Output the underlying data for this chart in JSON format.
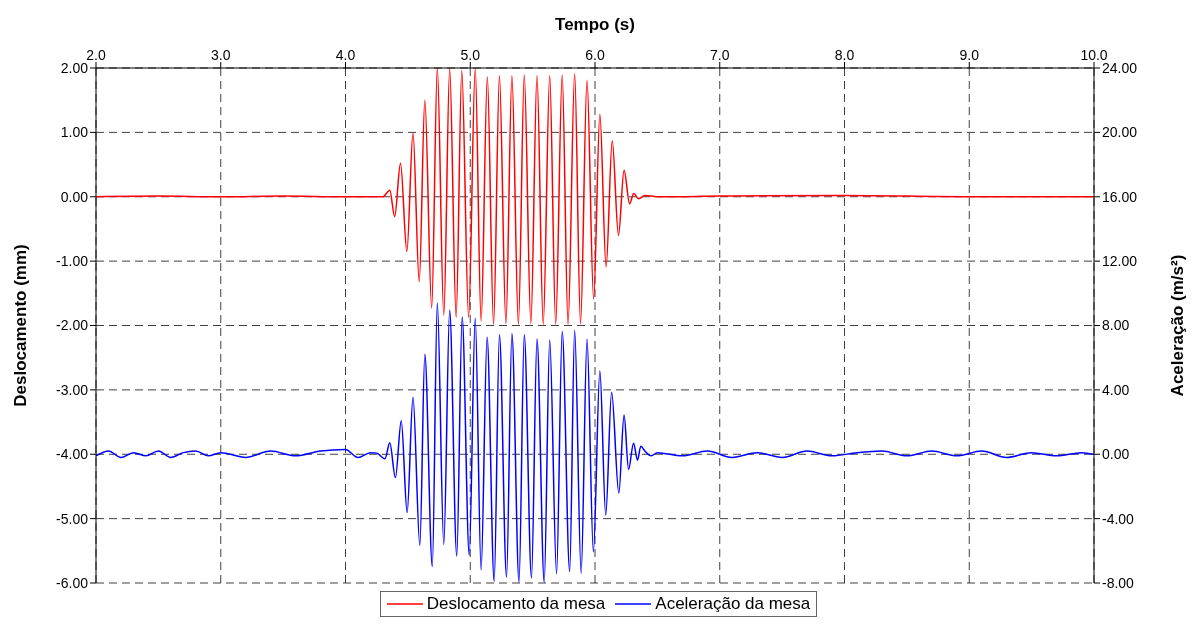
{
  "chart_data": {
    "type": "line",
    "xlabel": "Tempo (s)",
    "ylabel": "Deslocamento (mm)",
    "y2label": "Aceleração (m/s²)",
    "xlim": [
      2,
      10
    ],
    "xticks": [
      {
        "value": 2,
        "label": "2.0"
      },
      {
        "value": 3,
        "label": "3.0"
      },
      {
        "value": 4,
        "label": "4.0"
      },
      {
        "value": 5,
        "label": "5.0"
      },
      {
        "value": 6,
        "label": "6.0"
      },
      {
        "value": 7,
        "label": "7.0"
      },
      {
        "value": 8,
        "label": "8.0"
      },
      {
        "value": 9,
        "label": "9.0"
      },
      {
        "value": 10,
        "label": "10.0"
      }
    ],
    "ylim": [
      -6,
      2
    ],
    "yticks": [
      {
        "value": -6,
        "label": "-6.00"
      },
      {
        "value": -5,
        "label": "-5.00"
      },
      {
        "value": -4,
        "label": "-4.00"
      },
      {
        "value": -3,
        "label": "-3.00"
      },
      {
        "value": -2,
        "label": "-2.00"
      },
      {
        "value": -1,
        "label": "-1.00"
      },
      {
        "value": 0,
        "label": "0.00"
      },
      {
        "value": 1,
        "label": "1.00"
      },
      {
        "value": 2,
        "label": "2.00"
      }
    ],
    "y2lim": [
      -8,
      24
    ],
    "y2ticks": [
      {
        "value": -8,
        "label": "-8.00"
      },
      {
        "value": -4,
        "label": "-4.00"
      },
      {
        "value": 0,
        "label": "0.00"
      },
      {
        "value": 4,
        "label": "4.00"
      },
      {
        "value": 8,
        "label": "8.00"
      },
      {
        "value": 12,
        "label": "12.00"
      },
      {
        "value": 16,
        "label": "16.00"
      },
      {
        "value": 20,
        "label": "20.00"
      },
      {
        "value": 24,
        "label": "24.00"
      }
    ],
    "grid": true,
    "legend": "bottom",
    "marker": "none",
    "line_style": "solid",
    "series": [
      {
        "name": "Deslocamento da mesa",
        "color": "#ff0000",
        "x": [
          2.0,
          2.5,
          3.0,
          3.5,
          4.0,
          4.3,
          4.355,
          4.394,
          4.441,
          4.492,
          4.541,
          4.591,
          4.636,
          4.691,
          4.736,
          4.788,
          4.835,
          4.887,
          4.932,
          4.987,
          5.04,
          5.087,
          5.137,
          5.187,
          5.234,
          5.286,
          5.334,
          5.386,
          5.433,
          5.486,
          5.535,
          5.585,
          5.637,
          5.685,
          5.737,
          5.784,
          5.837,
          5.884,
          5.936,
          5.989,
          6.039,
          6.089,
          6.138,
          6.188,
          6.233,
          6.278,
          6.31,
          6.35,
          6.4,
          6.5,
          7.0,
          8.0,
          9.0,
          10.0
        ],
        "values": [
          0,
          0.01,
          0,
          0.01,
          0,
          0,
          0.1,
          -0.31,
          0.52,
          -0.85,
          0.99,
          -1.32,
          1.5,
          -1.73,
          2.0,
          -1.84,
          1.99,
          -1.87,
          1.96,
          -1.87,
          1.99,
          -1.93,
          1.86,
          -1.98,
          1.88,
          -1.97,
          1.88,
          -1.98,
          1.89,
          -1.97,
          1.88,
          -1.98,
          1.88,
          -1.98,
          1.89,
          -1.98,
          1.91,
          -1.97,
          1.81,
          -1.59,
          1.28,
          -1.09,
          0.87,
          -0.6,
          0.41,
          -0.11,
          0.05,
          -0.03,
          0.02,
          0,
          0.01,
          0.02,
          0,
          0
        ]
      },
      {
        "name": "Aceleração da mesa",
        "color": "#0000ff",
        "axis": "y2",
        "x": [
          2.0,
          2.1,
          2.2,
          2.3,
          2.4,
          2.5,
          2.6,
          2.7,
          2.8,
          2.9,
          3.0,
          3.2,
          3.4,
          3.6,
          3.8,
          4.0,
          4.1,
          4.2,
          4.25,
          4.316,
          4.355,
          4.4,
          4.447,
          4.494,
          4.541,
          4.596,
          4.636,
          4.696,
          4.736,
          4.788,
          4.835,
          4.892,
          4.935,
          4.992,
          5.04,
          5.087,
          5.135,
          5.192,
          5.234,
          5.291,
          5.334,
          5.391,
          5.433,
          5.491,
          5.535,
          5.593,
          5.637,
          5.692,
          5.737,
          5.797,
          5.837,
          5.889,
          5.936,
          5.987,
          6.039,
          6.086,
          6.133,
          6.191,
          6.233,
          6.269,
          6.309,
          6.341,
          6.367,
          6.4,
          6.45,
          6.5,
          6.7,
          6.9,
          7.1,
          7.3,
          7.5,
          7.7,
          7.9,
          8.1,
          8.3,
          8.5,
          8.7,
          8.9,
          9.1,
          9.3,
          9.5,
          9.7,
          9.9,
          10.0
        ],
        "values": [
          -0.1,
          0.2,
          -0.2,
          0.1,
          -0.1,
          0.2,
          -0.2,
          0.1,
          0.2,
          -0.1,
          0.1,
          -0.2,
          0.2,
          -0.1,
          0.2,
          0.3,
          -0.2,
          0.1,
          0.07,
          -0.28,
          0.71,
          -1.45,
          2.08,
          -3.62,
          3.54,
          -5.66,
          6.21,
          -6.98,
          9.4,
          -5.6,
          8.94,
          -6.33,
          8.53,
          -6.27,
          8.45,
          -7.19,
          7.27,
          -7.9,
          7.43,
          -7.63,
          7.51,
          -7.95,
          7.43,
          -7.69,
          7.16,
          -7.95,
          7.1,
          -7.43,
          7.63,
          -7.29,
          7.71,
          -7.39,
          7.16,
          -6.07,
          5.17,
          -3.77,
          3.85,
          -2.41,
          2.44,
          -0.94,
          0.69,
          -0.37,
          0.5,
          0.2,
          -0.1,
          0.1,
          -0.1,
          0.2,
          -0.2,
          0.1,
          -0.2,
          0.2,
          -0.1,
          0.1,
          0.2,
          -0.1,
          0.2,
          -0.1,
          0.2,
          -0.2,
          0.1,
          -0.1,
          0.1,
          0
        ]
      }
    ]
  }
}
